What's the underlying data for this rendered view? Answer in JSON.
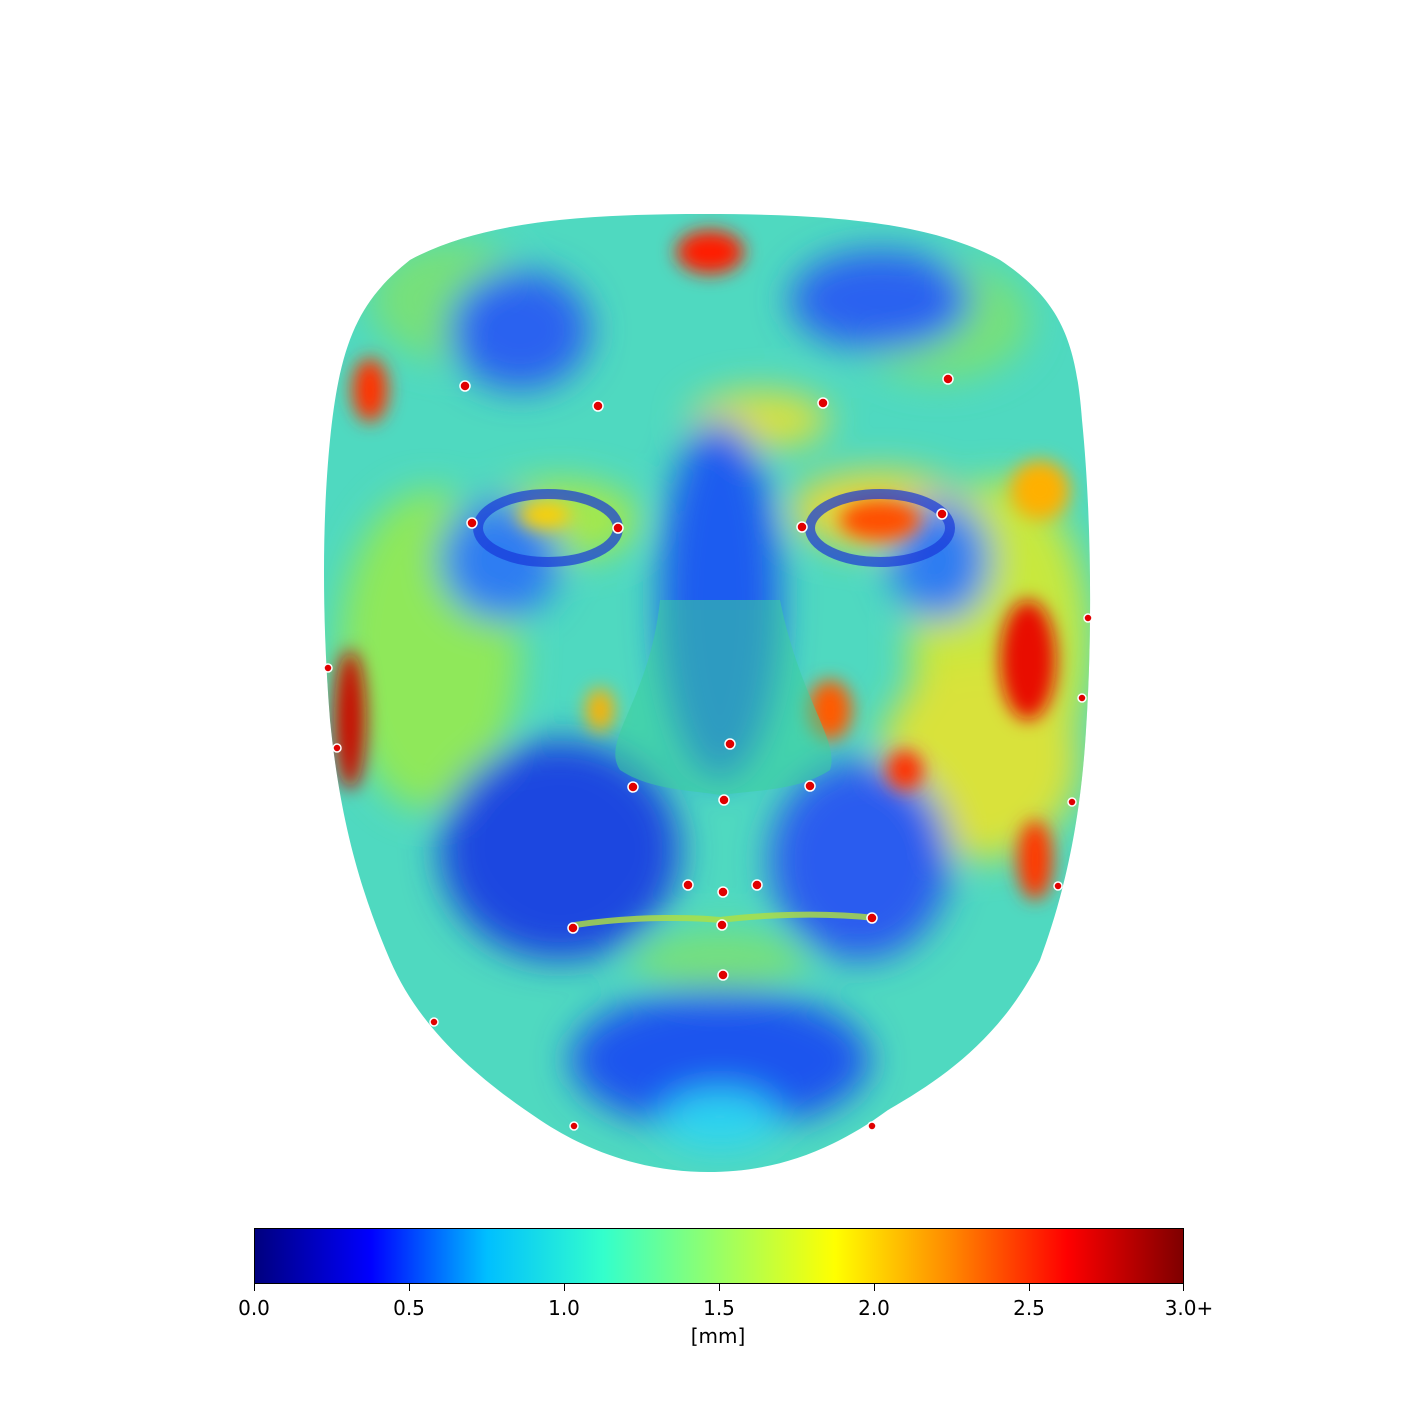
{
  "figure": {
    "subject": "face surface deviation heat map"
  },
  "colorbar": {
    "min": 0.0,
    "max": 3.0,
    "colormap": "jet",
    "stops": [
      "#00007f",
      "#0000ff",
      "#00bfff",
      "#33ffcc",
      "#99ff66",
      "#ffff00",
      "#ff8800",
      "#ff0000",
      "#7f0000"
    ],
    "ticks": [
      "0.0",
      "0.5",
      "1.0",
      "1.5",
      "2.0",
      "2.5",
      "3.0+"
    ],
    "unit": "[mm]"
  },
  "landmark_color": "#e00000"
}
